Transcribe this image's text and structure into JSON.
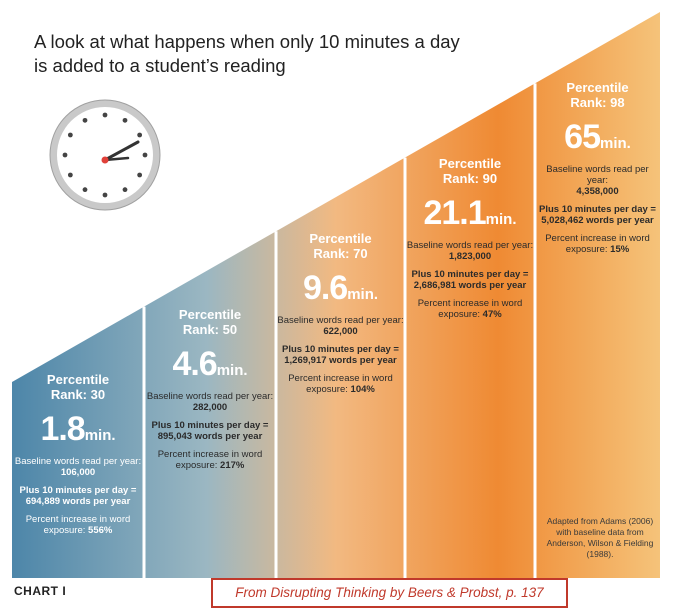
{
  "title": "A look at what happens when only 10 minutes a day is added to a student’s reading",
  "chart_label": "CHART I",
  "source_note": "From Disrupting Thinking by Beers & Probst, p. 137",
  "adapted_note": "Adapted from Adams (2006) with baseline data from Anderson, Wilson & Fielding (1988).",
  "colors": {
    "blue": "#4d86a9",
    "light_blue": "#9bb7c2",
    "light_orange": "#f4c77d",
    "orange": "#ef8a33",
    "clock_rim": "#a9a9a9",
    "clock_hand": "#e0413a",
    "source_red": "#c0392b"
  },
  "icons": [
    "clock-icon"
  ],
  "chart_data": {
    "type": "bar",
    "categories": [
      "Percentile Rank: 30",
      "Percentile Rank: 50",
      "Percentile Rank: 70",
      "Percentile Rank: 90",
      "Percentile Rank: 98"
    ],
    "series": [],
    "values": [
      1.8,
      4.6,
      9.6,
      21.1,
      65
    ],
    "columns": [
      {
        "rank_label": "Percentile",
        "rank_value": "Rank: 30",
        "minutes": "1.8",
        "unit": "min.",
        "baseline_label": "Baseline words read per year:",
        "baseline": "106,000",
        "plus_label": "Plus 10 minutes per day = 694,889 words per year",
        "percent_label": "Percent increase in word exposure:",
        "percent": "556%"
      },
      {
        "rank_label": "Percentile",
        "rank_value": "Rank: 50",
        "minutes": "4.6",
        "unit": "min.",
        "baseline_label": "Baseline words read per year:",
        "baseline": "282,000",
        "plus_label": "Plus 10 minutes per day = 895,043 words per year",
        "percent_label": "Percent increase in word exposure:",
        "percent": "217%"
      },
      {
        "rank_label": "Percentile",
        "rank_value": "Rank: 70",
        "minutes": "9.6",
        "unit": "min.",
        "baseline_label": "Baseline words read per year:",
        "baseline": "622,000",
        "plus_label": "Plus 10 minutes per day = 1,269,917 words per year",
        "percent_label": "Percent increase in word exposure:",
        "percent": "104%"
      },
      {
        "rank_label": "Percentile",
        "rank_value": "Rank: 90",
        "minutes": "21.1",
        "unit": "min.",
        "baseline_label": "Baseline words read per year:",
        "baseline": "1,823,000",
        "plus_label": "Plus 10 minutes per day = 2,686,981 words per year",
        "percent_label": "Percent increase in word exposure:",
        "percent": "47%"
      },
      {
        "rank_label": "Percentile",
        "rank_value": "Rank: 98",
        "minutes": "65",
        "unit": "min.",
        "baseline_label": "Baseline words read per year:",
        "baseline": "4,358,000",
        "plus_label": "Plus 10 minutes per day = 5,028,462 words per year",
        "percent_label": "Percent increase in word exposure:",
        "percent": "15%"
      }
    ],
    "baseline_words_per_year": [
      106000,
      282000,
      622000,
      1823000,
      4358000
    ],
    "plus_10_minutes_words_per_year": [
      694889,
      895043,
      1269917,
      2686981,
      5028462
    ],
    "percent_increase": [
      556,
      217,
      104,
      47,
      15
    ],
    "title": "A look at what happens when only 10 minutes a day is added to a student’s reading",
    "xlabel": "",
    "ylabel": ""
  }
}
